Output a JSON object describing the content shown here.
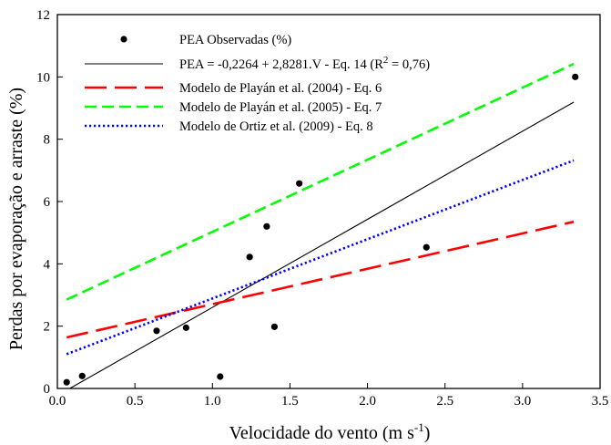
{
  "chart_data": {
    "type": "scatter",
    "xlabel": "Velocidade do vento (m s",
    "xlabel_sup": "-1",
    "xlabel_end": ")",
    "ylabel": "Perdas por evaporação e arraste (%)",
    "xlim": [
      0,
      3.5
    ],
    "ylim": [
      0,
      12
    ],
    "x_ticks": [
      0,
      0.5,
      1.0,
      1.5,
      2.0,
      2.5,
      3.0,
      3.5
    ],
    "x_tick_labels": [
      "0.0",
      "0.5",
      "1.0",
      "1.5",
      "2.0",
      "2.5",
      "3.0",
      "3.5"
    ],
    "y_ticks": [
      0,
      2,
      4,
      6,
      8,
      10,
      12
    ],
    "y_tick_labels": [
      "0",
      "2",
      "4",
      "6",
      "8",
      "10",
      "12"
    ],
    "grid": false,
    "legend_position": "top-left",
    "points": {
      "name": "PEA Observadas (%)",
      "x": [
        0.06,
        0.16,
        0.64,
        0.83,
        1.05,
        1.24,
        1.35,
        1.4,
        1.56,
        2.38,
        3.34
      ],
      "y": [
        0.2,
        0.4,
        1.85,
        1.95,
        0.38,
        4.22,
        5.2,
        1.98,
        6.58,
        4.53,
        10.0
      ]
    },
    "series": [
      {
        "name": "PEA = -0,2264 + 2,8281.V  - Eq. 14  (R",
        "name_sup": "2",
        "name_end": " = 0,76)",
        "x": [
          0.08,
          3.33
        ],
        "y": [
          0.0,
          9.19
        ],
        "color": "#000000",
        "style": "solid"
      },
      {
        "name": "Modelo de Playán et al. (2004) - Eq. 6",
        "x": [
          0.06,
          3.33
        ],
        "y": [
          1.64,
          5.35
        ],
        "color": "#ff0000",
        "style": "long-dash"
      },
      {
        "name": "Modelo de Playán et al. (2005) - Eq. 7",
        "x": [
          0.06,
          3.33
        ],
        "y": [
          2.85,
          10.42
        ],
        "color": "#00ff00",
        "style": "dash"
      },
      {
        "name": "Modelo de Ortiz et al. (2009) - Eq. 8",
        "x": [
          0.06,
          3.33
        ],
        "y": [
          1.1,
          7.32
        ],
        "color": "#0000ff",
        "style": "dot"
      }
    ]
  }
}
